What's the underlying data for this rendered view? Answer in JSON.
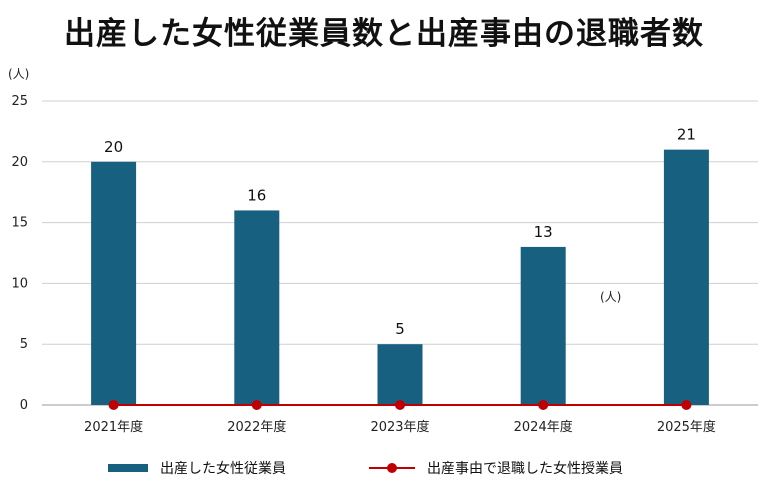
{
  "chart_data": {
    "type": "bar",
    "title": "出産した女性従業員数と出産事由の退職者数",
    "categories": [
      "2021年度",
      "2022年度",
      "2023年度",
      "2024年度",
      "2025年度"
    ],
    "series": [
      {
        "name": "出産した女性従業員",
        "type": "bar",
        "values": [
          20,
          16,
          5,
          13,
          21
        ],
        "color": "#17607f"
      },
      {
        "name": "出産事由で退職した女性授業員",
        "type": "line",
        "values": [
          0,
          0,
          0,
          0,
          0
        ],
        "color": "#c00000"
      }
    ],
    "y_unit": "(人)",
    "secondary_unit": "(人)",
    "ylim": [
      0,
      25
    ],
    "yticks": [
      0,
      5,
      10,
      15,
      20,
      25
    ],
    "grid": true,
    "legend_position": "bottom"
  }
}
